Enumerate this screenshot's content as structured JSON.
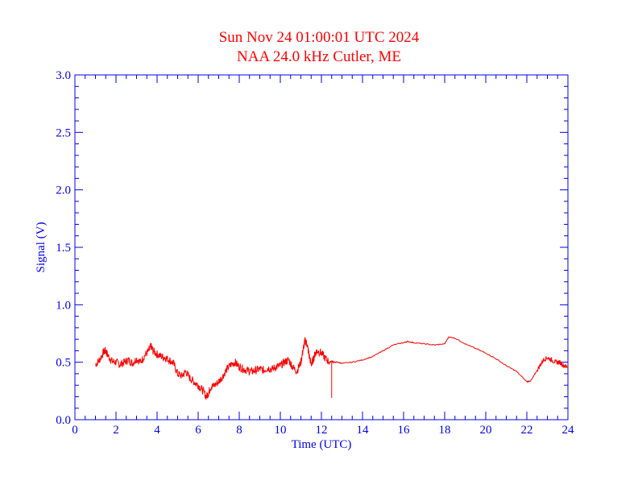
{
  "title_line1": "Sun Nov 24 01:00:01 UTC 2024",
  "title_line2": "NAA 24.0 kHz Cutler, ME",
  "colors": {
    "title": "#ff0000",
    "axes": "#0000ee",
    "series": "#ff0000"
  },
  "chart_data": {
    "type": "line",
    "xlabel": "Time (UTC)",
    "ylabel": "Signal (V)",
    "xlim": [
      0,
      24
    ],
    "ylim": [
      0.0,
      3.0
    ],
    "x_ticks": [
      0,
      2,
      4,
      6,
      8,
      10,
      12,
      14,
      16,
      18,
      20,
      22,
      24
    ],
    "x_tick_labels": [
      "0",
      "2",
      "4",
      "6",
      "8",
      "10",
      "12",
      "14",
      "16",
      "18",
      "20",
      "22",
      "24"
    ],
    "y_ticks": [
      0.0,
      0.5,
      1.0,
      1.5,
      2.0,
      2.5,
      3.0
    ],
    "y_tick_labels": [
      "0.0",
      "0.5",
      "1.0",
      "1.5",
      "2.0",
      "2.5",
      "3.0"
    ],
    "grid": false,
    "series": [
      {
        "x": [
          1.0,
          1.2,
          1.4,
          1.5,
          1.6,
          1.8,
          2.0,
          2.2,
          2.4,
          2.6,
          2.8,
          3.0,
          3.2,
          3.4,
          3.6,
          3.7,
          3.8,
          4.0,
          4.2,
          4.4,
          4.6,
          4.8,
          5.0,
          5.2,
          5.4,
          5.6,
          5.8,
          6.0,
          6.2,
          6.4,
          6.5,
          6.6,
          6.8,
          7.0,
          7.2,
          7.4,
          7.6,
          7.8,
          8.0,
          8.2,
          8.4,
          8.6,
          8.8,
          9.0,
          9.2,
          9.4,
          9.6,
          9.8,
          10.0,
          10.2,
          10.4,
          10.6,
          10.8,
          11.0,
          11.1,
          11.2,
          11.3,
          11.4,
          11.5,
          11.6,
          11.7,
          11.8,
          12.0,
          12.2,
          12.4,
          12.5,
          12.6,
          12.8,
          13.0,
          13.5,
          14.0,
          14.5,
          15.0,
          15.5,
          16.0,
          16.2,
          16.5,
          17.0,
          17.5,
          18.0,
          18.2,
          18.5,
          19.0,
          19.5,
          20.0,
          20.5,
          21.0,
          21.5,
          22.0,
          22.2,
          22.4,
          22.6,
          22.8,
          23.0,
          23.2,
          23.4,
          23.6,
          23.8,
          24.0
        ],
        "y": [
          0.48,
          0.52,
          0.59,
          0.6,
          0.56,
          0.51,
          0.5,
          0.48,
          0.5,
          0.52,
          0.49,
          0.53,
          0.5,
          0.56,
          0.6,
          0.64,
          0.6,
          0.57,
          0.55,
          0.54,
          0.52,
          0.49,
          0.4,
          0.38,
          0.42,
          0.36,
          0.33,
          0.3,
          0.26,
          0.2,
          0.23,
          0.28,
          0.3,
          0.33,
          0.38,
          0.44,
          0.48,
          0.5,
          0.46,
          0.44,
          0.43,
          0.42,
          0.43,
          0.44,
          0.43,
          0.45,
          0.44,
          0.46,
          0.47,
          0.5,
          0.52,
          0.46,
          0.42,
          0.5,
          0.6,
          0.69,
          0.66,
          0.56,
          0.48,
          0.52,
          0.58,
          0.6,
          0.58,
          0.53,
          0.5,
          0.51,
          0.5,
          0.5,
          0.49,
          0.5,
          0.52,
          0.55,
          0.6,
          0.65,
          0.67,
          0.68,
          0.67,
          0.66,
          0.65,
          0.66,
          0.72,
          0.71,
          0.66,
          0.62,
          0.58,
          0.53,
          0.47,
          0.42,
          0.33,
          0.34,
          0.4,
          0.46,
          0.52,
          0.54,
          0.52,
          0.5,
          0.5,
          0.47,
          0.46
        ]
      }
    ],
    "spikes": [
      {
        "x": 12.5,
        "y_top": 0.5,
        "y_bottom": 0.19
      }
    ]
  }
}
